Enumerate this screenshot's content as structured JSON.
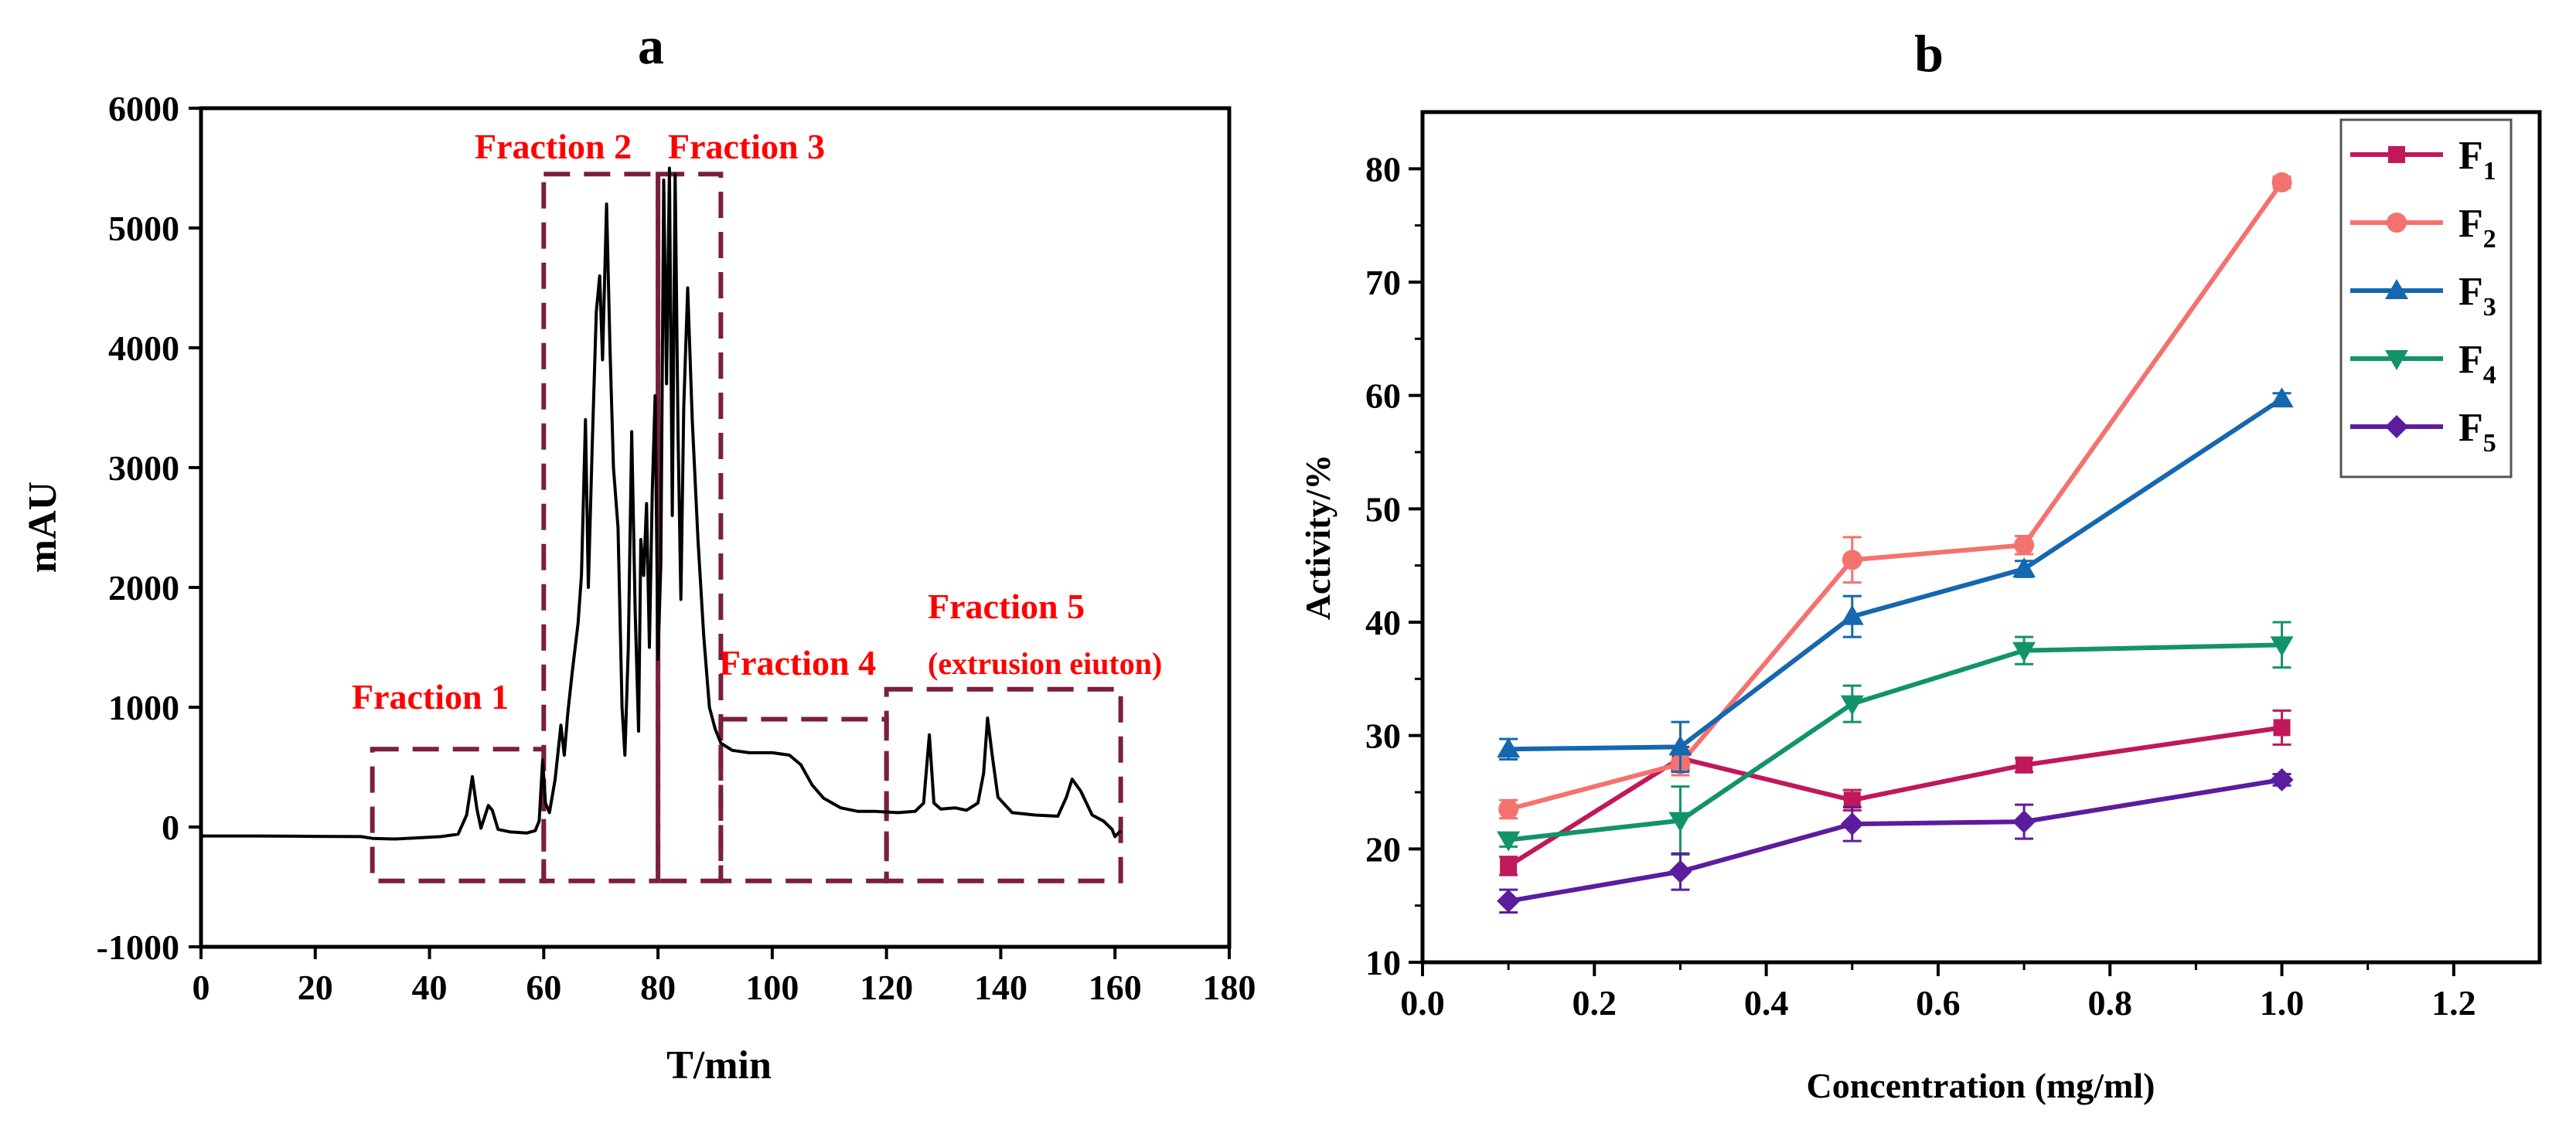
{
  "panel_a": {
    "label": "a",
    "xlabel": "T/min",
    "ylabel": "mAU",
    "fraction_labels": [
      "Fraction 1",
      "Fraction 2",
      "Fraction 3",
      "Fraction 4",
      "Fraction 5",
      "(extrusion eiuton)"
    ]
  },
  "panel_b": {
    "label": "b",
    "xlabel": "Concentration (mg/ml)",
    "ylabel": "Activity/%"
  },
  "colors": {
    "trace": "#000000",
    "fraction_box": "#7a1f3d",
    "fraction_text": "#ff0000",
    "F1": "#c0185a",
    "F2": "#f4726e",
    "F3": "#1567b0",
    "F4": "#13936a",
    "F5": "#5b1c9e"
  },
  "chart_data": [
    {
      "type": "line",
      "title": "a",
      "xlabel": "T/min",
      "ylabel": "mAU",
      "xlim": [
        0,
        180
      ],
      "ylim": [
        -1000,
        6000
      ],
      "xticks": [
        0,
        20,
        40,
        60,
        80,
        100,
        120,
        140,
        160,
        180
      ],
      "yticks": [
        -1000,
        0,
        1000,
        2000,
        3000,
        4000,
        5000,
        6000
      ],
      "series": [
        {
          "name": "chromatogram",
          "points": [
            [
              0,
              -75
            ],
            [
              10,
              -75
            ],
            [
              20,
              -78
            ],
            [
              28,
              -80
            ],
            [
              30,
              -95
            ],
            [
              34,
              -100
            ],
            [
              38,
              -90
            ],
            [
              42,
              -80
            ],
            [
              45,
              -60
            ],
            [
              46.5,
              100
            ],
            [
              47.5,
              420
            ],
            [
              48.3,
              150
            ],
            [
              49,
              -10
            ],
            [
              50.3,
              180
            ],
            [
              51,
              140
            ],
            [
              52,
              -20
            ],
            [
              54,
              -40
            ],
            [
              57,
              -50
            ],
            [
              58.5,
              -30
            ],
            [
              59.2,
              50
            ],
            [
              59.8,
              560
            ],
            [
              60.3,
              200
            ],
            [
              61,
              120
            ],
            [
              62,
              400
            ],
            [
              63,
              850
            ],
            [
              63.6,
              600
            ],
            [
              64.2,
              950
            ],
            [
              65,
              1300
            ],
            [
              66,
              1700
            ],
            [
              66.6,
              2100
            ],
            [
              67.3,
              3400
            ],
            [
              67.8,
              2000
            ],
            [
              68.5,
              3200
            ],
            [
              69.2,
              4300
            ],
            [
              69.8,
              4600
            ],
            [
              70.3,
              3900
            ],
            [
              71,
              5200
            ],
            [
              71.6,
              4000
            ],
            [
              72.2,
              3000
            ],
            [
              73,
              2500
            ],
            [
              73.7,
              1000
            ],
            [
              74.2,
              600
            ],
            [
              74.8,
              1500
            ],
            [
              75.4,
              3300
            ],
            [
              76,
              1800
            ],
            [
              76.6,
              800
            ],
            [
              77,
              2400
            ],
            [
              77.5,
              2100
            ],
            [
              78,
              2700
            ],
            [
              78.5,
              1500
            ],
            [
              79,
              2800
            ],
            [
              79.5,
              3600
            ],
            [
              80,
              1400
            ],
            [
              80.5,
              2200
            ],
            [
              81,
              5400
            ],
            [
              81.5,
              3700
            ],
            [
              82,
              5500
            ],
            [
              82.5,
              2600
            ],
            [
              83,
              5450
            ],
            [
              83.5,
              3300
            ],
            [
              84,
              1900
            ],
            [
              84.5,
              3500
            ],
            [
              85.2,
              4500
            ],
            [
              86,
              3400
            ],
            [
              87,
              2400
            ],
            [
              88,
              1600
            ],
            [
              89,
              1000
            ],
            [
              90,
              820
            ],
            [
              91,
              700
            ],
            [
              93,
              640
            ],
            [
              96,
              620
            ],
            [
              100,
              620
            ],
            [
              103,
              600
            ],
            [
              105,
              520
            ],
            [
              107,
              350
            ],
            [
              109,
              240
            ],
            [
              112,
              160
            ],
            [
              115,
              130
            ],
            [
              118,
              130
            ],
            [
              122,
              120
            ],
            [
              125,
              130
            ],
            [
              126.5,
              200
            ],
            [
              127.5,
              770
            ],
            [
              128.3,
              200
            ],
            [
              129.5,
              150
            ],
            [
              132,
              160
            ],
            [
              134,
              140
            ],
            [
              136,
              200
            ],
            [
              137,
              450
            ],
            [
              137.7,
              910
            ],
            [
              138.5,
              600
            ],
            [
              139.5,
              250
            ],
            [
              142,
              120
            ],
            [
              146,
              100
            ],
            [
              150,
              90
            ],
            [
              151.5,
              250
            ],
            [
              152.5,
              400
            ],
            [
              154,
              300
            ],
            [
              156,
              100
            ],
            [
              158,
              50
            ],
            [
              159.5,
              -20
            ],
            [
              160,
              -80
            ],
            [
              161,
              -30
            ]
          ]
        }
      ],
      "fraction_boxes": [
        {
          "label": "Fraction 1",
          "x_range": [
            30,
            60
          ],
          "y_range": [
            -450,
            650
          ]
        },
        {
          "label": "Fraction 2",
          "x_range": [
            60,
            80
          ],
          "y_range": [
            -450,
            5450
          ]
        },
        {
          "label": "Fraction 3",
          "x_range": [
            80,
            91
          ],
          "y_range": [
            -450,
            5450
          ]
        },
        {
          "label": "Fraction 4",
          "x_range": [
            91,
            120
          ],
          "y_range": [
            -450,
            900
          ]
        },
        {
          "label": "Fraction 5",
          "x_range": [
            120,
            161
          ],
          "y_range": [
            -450,
            1150
          ]
        }
      ]
    },
    {
      "type": "line",
      "title": "b",
      "xlabel": "Concentration (mg/ml)",
      "ylabel": "Activity/%",
      "xlim": [
        0.0,
        1.3
      ],
      "ylim": [
        10,
        85
      ],
      "xticks": [
        0.0,
        0.2,
        0.4,
        0.6,
        0.8,
        1.0,
        1.2
      ],
      "xtick_labels": [
        "0.0",
        "0.2",
        "0.4",
        "0.6",
        "0.8",
        "1.0",
        "1.2"
      ],
      "yticks": [
        10,
        20,
        30,
        40,
        50,
        60,
        70,
        80
      ],
      "x": [
        0.1,
        0.3,
        0.5,
        0.7,
        1.0
      ],
      "legend_position": "top-right",
      "series": [
        {
          "name": "F1",
          "sub": "1",
          "marker": "square",
          "values": [
            18.5,
            28.0,
            24.3,
            27.4,
            30.7
          ],
          "errors": [
            0.8,
            1.0,
            0.9,
            0.6,
            1.5
          ]
        },
        {
          "name": "F2",
          "sub": "2",
          "marker": "circle",
          "values": [
            23.5,
            27.5,
            45.5,
            46.8,
            78.8
          ],
          "errors": [
            0.8,
            1.0,
            2.0,
            0.8,
            0.5
          ]
        },
        {
          "name": "F3",
          "sub": "3",
          "marker": "triangle-up",
          "values": [
            28.8,
            29.0,
            40.5,
            44.7,
            59.7
          ],
          "errors": [
            0.9,
            2.2,
            1.8,
            0.7,
            0.5
          ]
        },
        {
          "name": "F4",
          "sub": "4",
          "marker": "triangle-down",
          "values": [
            20.8,
            22.5,
            32.8,
            37.5,
            38.0
          ],
          "errors": [
            0.6,
            3.0,
            1.6,
            1.2,
            2.0
          ]
        },
        {
          "name": "F5",
          "sub": "5",
          "marker": "diamond",
          "values": [
            15.4,
            18.0,
            22.2,
            22.4,
            26.1
          ],
          "errors": [
            1.0,
            1.6,
            1.5,
            1.5,
            0.5
          ]
        }
      ]
    }
  ]
}
